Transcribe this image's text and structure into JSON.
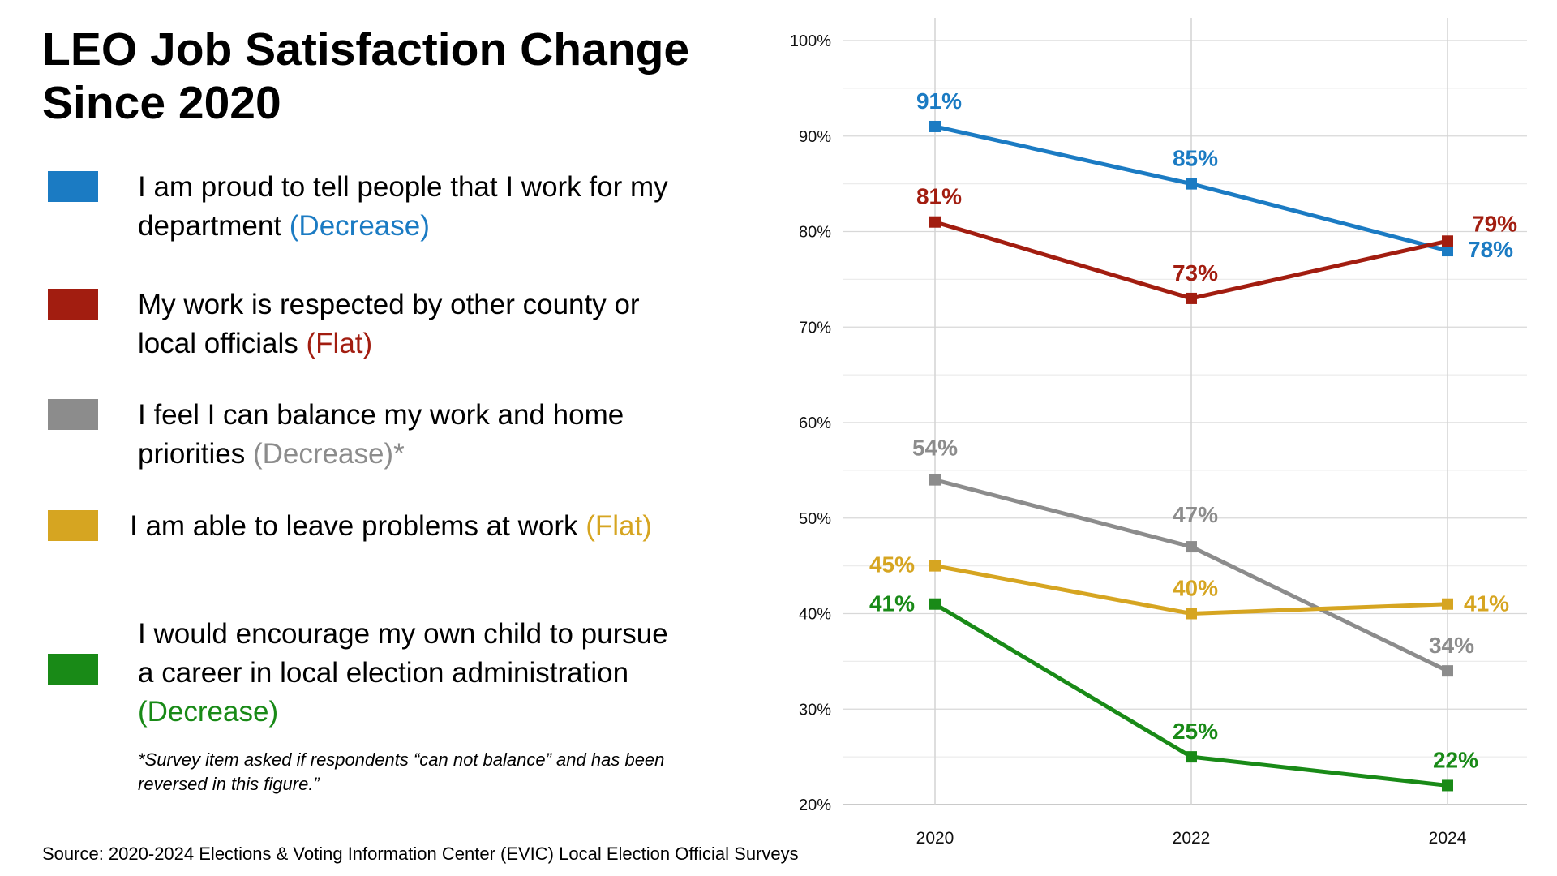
{
  "title": "LEO Job Satisfaction Change Since 2020",
  "legend": [
    {
      "text": "I am proud to tell people that I work for my department",
      "trend": "(Decrease)",
      "color": "#1b7bc3"
    },
    {
      "text": "My work is respected by other county or local officials",
      "trend": "(Flat)",
      "color": "#a21d10"
    },
    {
      "text": "I feel I can balance my work and home priorities",
      "trend": "(Decrease)",
      "suffix": "*",
      "color": "#8c8c8c"
    },
    {
      "text": "I am able to leave problems at work",
      "trend": "(Flat)",
      "color": "#d6a521"
    },
    {
      "text": "I would encourage my own child to pursue a career in local election administration",
      "trend": "(Decrease)",
      "color": "#198a17"
    }
  ],
  "footnote": "*Survey item asked if respondents “can not balance” and has been reversed in this figure.”",
  "source": "Source: 2020-2024 Elections & Voting Information Center (EVIC) Local Election Official Surveys",
  "chart_data": {
    "type": "line",
    "x": [
      "2020",
      "2022",
      "2024"
    ],
    "ylim": [
      20,
      100
    ],
    "yticks": [
      "20%",
      "30%",
      "40%",
      "50%",
      "60%",
      "70%",
      "80%",
      "90%",
      "100%"
    ],
    "grid": true,
    "series": [
      {
        "values": [
          91,
          85,
          78
        ],
        "labels": [
          "91%",
          "85%",
          "78%"
        ],
        "color": "#1b7bc3"
      },
      {
        "values": [
          81,
          73,
          79
        ],
        "labels": [
          "81%",
          "73%",
          "79%"
        ],
        "color": "#a21d10"
      },
      {
        "values": [
          54,
          47,
          34
        ],
        "labels": [
          "54%",
          "47%",
          "34%"
        ],
        "color": "#8c8c8c"
      },
      {
        "values": [
          45,
          40,
          41
        ],
        "labels": [
          "45%",
          "40%",
          "41%"
        ],
        "color": "#d6a521"
      },
      {
        "values": [
          41,
          25,
          22
        ],
        "labels": [
          "41%",
          "25%",
          "22%"
        ],
        "color": "#198a17"
      }
    ]
  }
}
